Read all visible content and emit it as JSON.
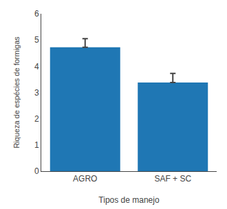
{
  "chart_data": {
    "type": "bar",
    "categories": [
      "AGRO",
      "SAF + SC"
    ],
    "values": [
      4.72,
      3.38
    ],
    "error_upper": [
      0.33,
      0.35
    ],
    "error_lower": [
      0.0,
      0.0
    ],
    "xlabel": "Tipos de manejo",
    "ylabel": "Riqueza de espécies de formigas",
    "ylim": [
      0,
      6
    ],
    "yticks": [
      0,
      1,
      2,
      3,
      4,
      5,
      6
    ],
    "grid": false
  }
}
